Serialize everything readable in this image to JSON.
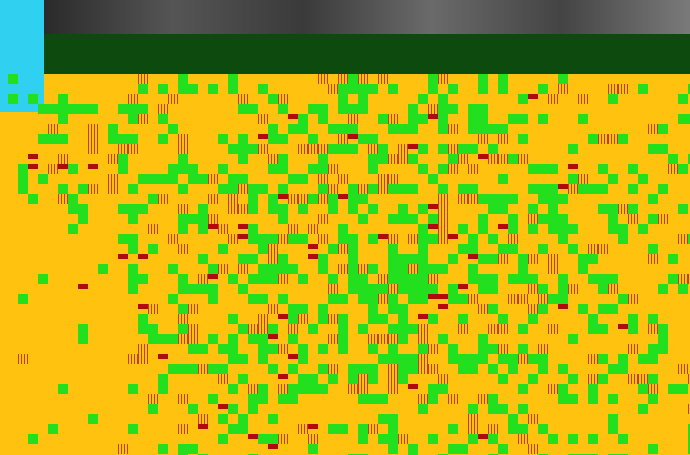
{
  "palette": {
    "background": "#ffc20e",
    "vegetation": "#22e01e",
    "stripe": "#c0410f",
    "dark-red": "#b00b0b",
    "dark-green": "#0d4a0d",
    "cyan": "#2fd0f0",
    "magenta": "#e45cd6"
  },
  "icons": {
    "cyan-block": "cyan-rectangle"
  }
}
